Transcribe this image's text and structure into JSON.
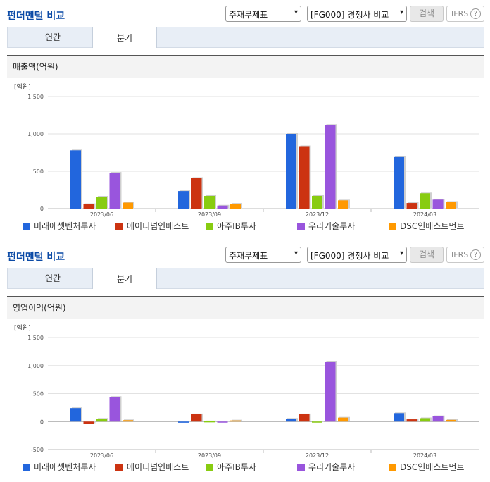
{
  "title": "펀더멘털 비교",
  "controls": {
    "statement_select": "주재무제표",
    "compare_select": "[FG000] 경쟁사 비교",
    "search_label": "검색",
    "ifrs_label": "IFRS",
    "help_glyph": "?",
    "caret": "▾"
  },
  "tabs": [
    "연간",
    "분기"
  ],
  "active_tab": "분기",
  "axis_unit_label": "[억원]",
  "legend": [
    "미래에셋벤처투자",
    "에이티넘인베스트",
    "아주IB투자",
    "우리기술투자",
    "DSC인베스트먼트"
  ],
  "colors": {
    "series": [
      "#2266dd",
      "#cc3311",
      "#88cc11",
      "#9955dd",
      "#ff9900"
    ],
    "title": "#0b4aa6"
  },
  "chart_data": [
    {
      "type": "bar",
      "title": "매출액(억원)",
      "ylabel": "[억원]",
      "categories": [
        "2023/06",
        "2023/09",
        "2023/12",
        "2024/03"
      ],
      "ylim": [
        0,
        1500
      ],
      "yticks": [
        0,
        500,
        1000,
        1500
      ],
      "ytick_labels": [
        "0",
        "500",
        "1,000",
        "1,500"
      ],
      "grid": true,
      "legend_position": "bottom",
      "series": [
        {
          "name": "미래에셋벤처투자",
          "values": [
            780,
            235,
            1000,
            690
          ]
        },
        {
          "name": "에이티넘인베스트",
          "values": [
            60,
            410,
            835,
            75
          ]
        },
        {
          "name": "아주IB투자",
          "values": [
            160,
            170,
            170,
            205
          ]
        },
        {
          "name": "우리기술투자",
          "values": [
            480,
            40,
            1120,
            120
          ]
        },
        {
          "name": "DSC인베스트먼트",
          "values": [
            80,
            65,
            110,
            90
          ]
        }
      ]
    },
    {
      "type": "bar",
      "title": "영업이익(억원)",
      "ylabel": "[억원]",
      "categories": [
        "2023/06",
        "2023/09",
        "2023/12",
        "2024/03"
      ],
      "ylim": [
        -500,
        1500
      ],
      "yticks": [
        -500,
        0,
        500,
        1000,
        1500
      ],
      "ytick_labels": [
        "-500",
        "0",
        "500",
        "1,000",
        "1,500"
      ],
      "grid": true,
      "legend_position": "bottom",
      "series": [
        {
          "name": "미래에셋벤처투자",
          "values": [
            240,
            -20,
            50,
            150
          ]
        },
        {
          "name": "에이티넘인베스트",
          "values": [
            -40,
            130,
            130,
            40
          ]
        },
        {
          "name": "아주IB투자",
          "values": [
            50,
            5,
            -10,
            60
          ]
        },
        {
          "name": "우리기술투자",
          "values": [
            440,
            -5,
            1060,
            95
          ]
        },
        {
          "name": "DSC인베스트먼트",
          "values": [
            25,
            20,
            70,
            30
          ]
        }
      ]
    }
  ]
}
